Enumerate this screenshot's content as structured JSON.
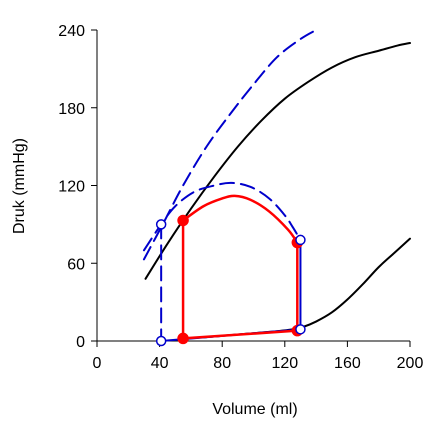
{
  "chart_data": {
    "type": "line",
    "xlabel": "Volume (ml)",
    "ylabel": "Druk (mmHg)",
    "xlim": [
      0,
      200
    ],
    "ylim": [
      0,
      240
    ],
    "x_ticks": [
      "0",
      "40",
      "80",
      "120",
      "160",
      "200"
    ],
    "y_ticks": [
      "0",
      "60",
      "120",
      "180",
      "240"
    ],
    "grid": false,
    "legend": "none",
    "colors": {
      "black": "#000000",
      "red": "#ff0000",
      "blue": "#0000cc"
    },
    "series": [
      {
        "style": "black-solid",
        "x": [
          31,
          45,
          60,
          75,
          90,
          105,
          120,
          135,
          150,
          165,
          180,
          192,
          200
        ],
        "y": [
          48,
          75,
          102,
          127,
          150,
          170,
          187,
          200,
          211,
          219,
          224,
          228,
          230
        ]
      },
      {
        "style": "black-solid",
        "x": [
          55,
          70,
          90,
          110,
          125,
          132,
          140,
          150,
          160,
          170,
          180,
          190,
          200
        ],
        "y": [
          2,
          3,
          5,
          7,
          9,
          11,
          15,
          22,
          32,
          44,
          57,
          68,
          79
        ]
      },
      {
        "style": "blue-dashed",
        "x": [
          30,
          42,
          55,
          70,
          85,
          100,
          115,
          130,
          140
        ],
        "y": [
          63,
          90,
          120,
          150,
          175,
          198,
          219,
          233,
          240
        ]
      },
      {
        "style": "blue-dashed",
        "x": [
          30,
          41,
          50,
          62,
          75,
          86,
          98,
          110,
          120,
          125,
          130
        ],
        "y": [
          70,
          90,
          104,
          115,
          120,
          122,
          119,
          110,
          97,
          88,
          78
        ]
      },
      {
        "style": "blue-dashed",
        "x": [
          41,
          41
        ],
        "y": [
          90,
          0
        ]
      },
      {
        "style": "blue-solid",
        "x": [
          130,
          130,
          41
        ],
        "y": [
          78,
          9,
          0
        ]
      },
      {
        "style": "red-solid",
        "x": [
          55,
          55,
          68,
          80,
          88,
          98,
          110,
          122,
          128,
          128,
          55
        ],
        "y": [
          2,
          93,
          104,
          110,
          112,
          109,
          100,
          86,
          76,
          8,
          2
        ]
      }
    ],
    "markers": [
      {
        "x": 55,
        "y": 93,
        "style": "red-filled"
      },
      {
        "x": 55,
        "y": 2,
        "style": "red-filled"
      },
      {
        "x": 128,
        "y": 76,
        "style": "red-filled"
      },
      {
        "x": 128,
        "y": 8,
        "style": "red-filled"
      },
      {
        "x": 41,
        "y": 90,
        "style": "blue-open"
      },
      {
        "x": 41,
        "y": 0,
        "style": "blue-open"
      },
      {
        "x": 130,
        "y": 78,
        "style": "blue-open"
      },
      {
        "x": 130,
        "y": 9,
        "style": "blue-open"
      }
    ]
  }
}
